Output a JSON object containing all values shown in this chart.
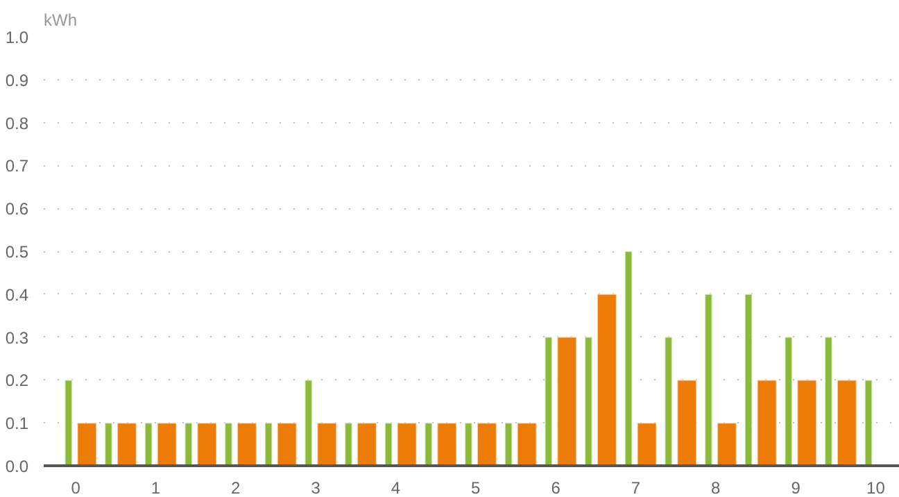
{
  "chart_data": {
    "type": "bar",
    "ylabel": "kWh",
    "x": [
      0,
      0.5,
      1,
      1.5,
      2,
      2.5,
      3,
      3.5,
      4,
      4.5,
      5,
      5.5,
      6,
      6.5,
      7,
      7.5,
      8,
      8.5,
      9,
      9.5,
      10
    ],
    "series": [
      {
        "color": "#8aba37",
        "values": [
          0.2,
          0.1,
          0.1,
          0.1,
          0.1,
          0.1,
          0.2,
          0.1,
          0.1,
          0.1,
          0.1,
          0.1,
          0.3,
          0.3,
          0.5,
          0.3,
          0.4,
          0.4,
          0.3,
          0.3,
          0.2
        ]
      },
      {
        "color": "#ec7c05",
        "values": [
          0.1,
          0.1,
          0.1,
          0.1,
          0.1,
          0.1,
          0.1,
          0.1,
          0.1,
          0.1,
          0.1,
          0.1,
          0.3,
          0.4,
          0.1,
          0.2,
          0.1,
          0.2,
          0.2,
          0.2,
          null
        ]
      }
    ],
    "xlim": [
      -0.4,
      10.3
    ],
    "xticks": [
      0,
      1,
      2,
      3,
      4,
      5,
      6,
      7,
      8,
      9,
      10
    ],
    "ylim": [
      0,
      1.0
    ],
    "yticks": [
      {
        "value": 0,
        "label": "0.0"
      },
      {
        "value": 0.1,
        "label": "0.1"
      },
      {
        "value": 0.2,
        "label": "0.2"
      },
      {
        "value": 0.3,
        "label": "0.3"
      },
      {
        "value": 0.4,
        "label": "0.4"
      },
      {
        "value": 0.5,
        "label": "0.5"
      },
      {
        "value": 0.6,
        "label": "0.6"
      },
      {
        "value": 0.7,
        "label": "0.7"
      },
      {
        "value": 0.8,
        "label": "0.8"
      },
      {
        "value": 0.9,
        "label": "0.9"
      },
      {
        "value": 1.0,
        "label": "1.0"
      }
    ],
    "grid": "y"
  }
}
